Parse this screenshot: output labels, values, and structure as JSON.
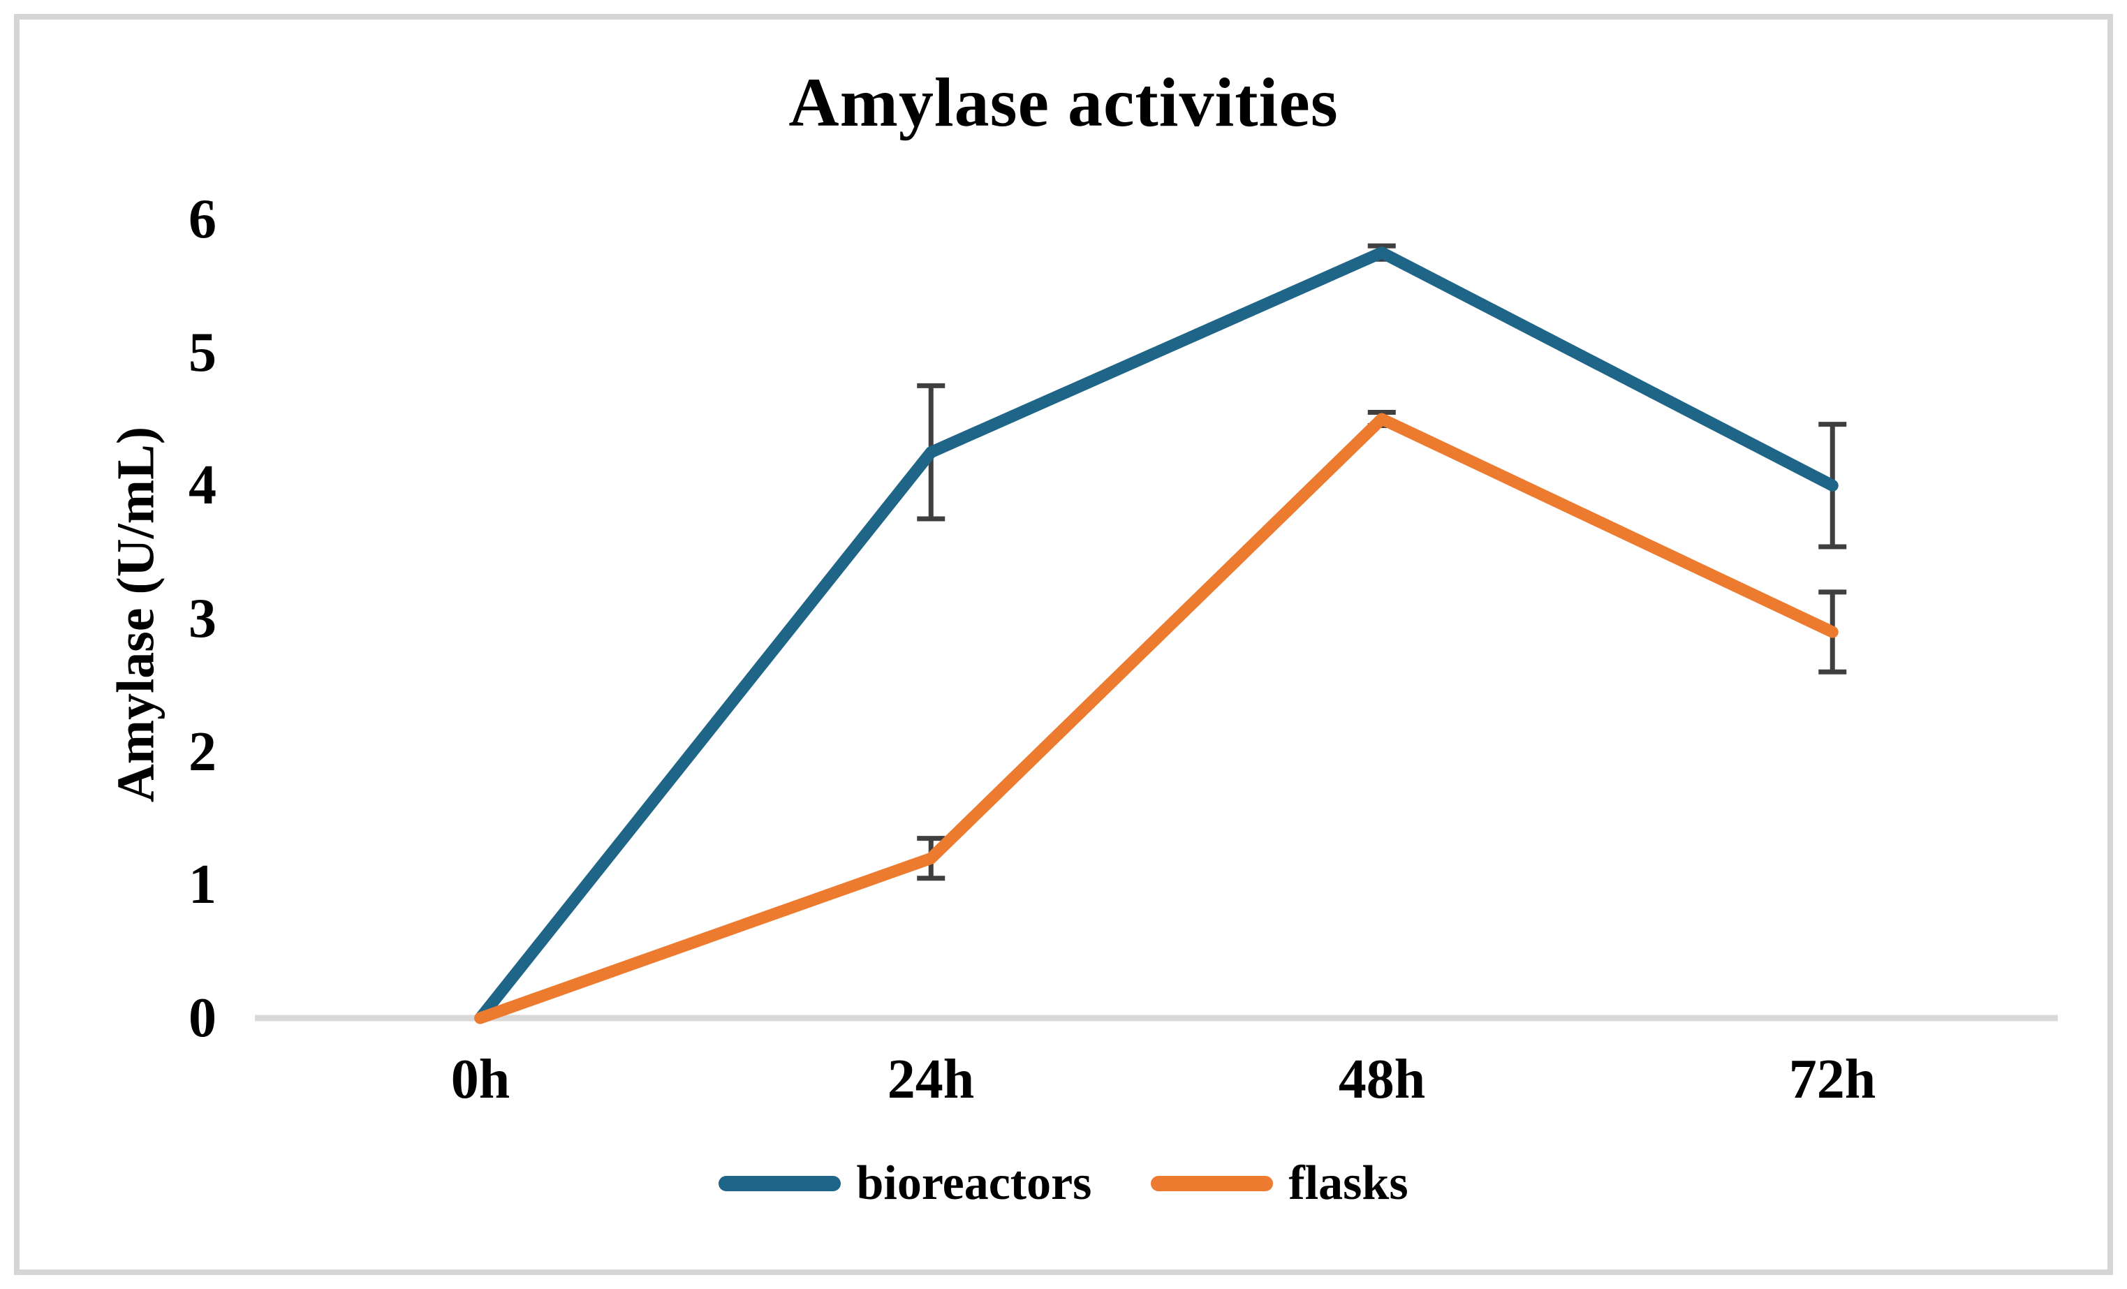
{
  "chart_data": {
    "type": "line",
    "title": "Amylase activities",
    "xlabel": "",
    "ylabel": "Amylase (U/mL)",
    "categories": [
      "0h",
      "24h",
      "48h",
      "72h"
    ],
    "yticks": [
      0,
      1,
      2,
      3,
      4,
      5,
      6
    ],
    "ylim": [
      0,
      6
    ],
    "grid": false,
    "legend_position": "bottom-center",
    "axis_line_color": "#D9D9D9",
    "error_bar_color": "#3F3F3F",
    "series": [
      {
        "name": "bioreactors",
        "color": "#1F6587",
        "values": [
          0,
          4.25,
          5.75,
          4.0
        ],
        "error_bars": [
          0,
          0.5,
          0.05,
          0.46
        ]
      },
      {
        "name": "flasks",
        "color": "#EC7B30",
        "values": [
          0,
          1.2,
          4.5,
          2.9
        ],
        "error_bars": [
          0,
          0.15,
          0.05,
          0.3
        ]
      }
    ]
  }
}
